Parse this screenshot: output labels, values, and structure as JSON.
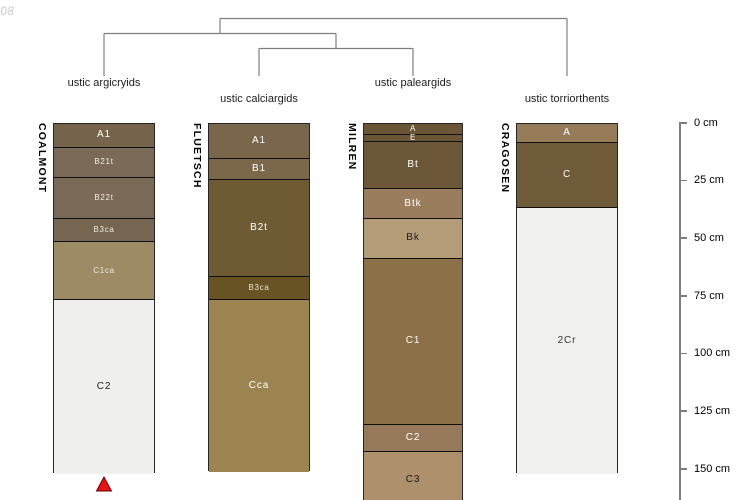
{
  "figure": {
    "corner_note": "-08",
    "depth_axis": {
      "unit": "cm",
      "tick_labels": [
        "0 cm",
        "25 cm",
        "50 cm",
        "75 cm",
        "100 cm",
        "125 cm",
        "150 cm"
      ],
      "ticks_cm": [
        0,
        25,
        50,
        75,
        100,
        125,
        150
      ]
    }
  },
  "chart_data": {
    "type": "soil-profile-columns-with-dendrogram",
    "depth_unit": "cm",
    "depth_axis_ticks_cm": [
      0,
      25,
      50,
      75,
      100,
      125,
      150
    ],
    "profiles": [
      {
        "name": "COALMONT",
        "taxon": "ustic argicryids",
        "horizons": [
          {
            "label": "A1",
            "top_cm": 0,
            "bottom_cm": 10,
            "color": "#75634B",
            "label_color": "#ffffff",
            "label_size": "normal"
          },
          {
            "label": "B21t",
            "top_cm": 10,
            "bottom_cm": 23,
            "color": "#7B6A58",
            "label_color": "#f2ede1",
            "label_size": "small"
          },
          {
            "label": "B22t",
            "top_cm": 23,
            "bottom_cm": 41,
            "color": "#7B6A58",
            "label_color": "#f2ede1",
            "label_size": "small"
          },
          {
            "label": "B3ca",
            "top_cm": 41,
            "bottom_cm": 51,
            "color": "#766551",
            "label_color": "#f2ede1",
            "label_size": "small"
          },
          {
            "label": "C1ca",
            "top_cm": 51,
            "bottom_cm": 76,
            "color": "#9D8B66",
            "label_color": "#efe9db",
            "label_size": "small"
          },
          {
            "label": "C2",
            "top_cm": 76,
            "bottom_cm": 152,
            "color": "#F0F0EE",
            "label_color": "#1a1a1a",
            "label_size": "normal"
          }
        ]
      },
      {
        "name": "FLUETSCH",
        "taxon": "ustic calciargids",
        "horizons": [
          {
            "label": "A1",
            "top_cm": 0,
            "bottom_cm": 15,
            "color": "#7A664A",
            "label_color": "#ffffff",
            "label_size": "normal"
          },
          {
            "label": "B1",
            "top_cm": 15,
            "bottom_cm": 24,
            "color": "#7B6749",
            "label_color": "#ffffff",
            "label_size": "normal"
          },
          {
            "label": "B2t",
            "top_cm": 24,
            "bottom_cm": 66,
            "color": "#6E5B33",
            "label_color": "#ffffff",
            "label_size": "normal"
          },
          {
            "label": "B3ca",
            "top_cm": 66,
            "bottom_cm": 76,
            "color": "#675323",
            "label_color": "#ece5d2",
            "label_size": "small"
          },
          {
            "label": "Cca",
            "top_cm": 76,
            "bottom_cm": 151,
            "color": "#9C8450",
            "label_color": "#ffffff",
            "label_size": "normal"
          }
        ]
      },
      {
        "name": "MILREN",
        "taxon": "ustic paleargids",
        "horizons": [
          {
            "label": "A",
            "top_cm": 0,
            "bottom_cm": 4.5,
            "color": "#6A5537",
            "label_color": "#ffffff",
            "label_size": "small"
          },
          {
            "label": "E",
            "top_cm": 4.5,
            "bottom_cm": 7.5,
            "color": "#6A5537",
            "label_color": "#ffffff",
            "label_size": "small"
          },
          {
            "label": "Bt",
            "top_cm": 7.5,
            "bottom_cm": 28,
            "color": "#6C5838",
            "label_color": "#ffffff",
            "label_size": "normal"
          },
          {
            "label": "Btk",
            "top_cm": 28,
            "bottom_cm": 41,
            "color": "#9A7D5D",
            "label_color": "#ffffff",
            "label_size": "normal"
          },
          {
            "label": "Bk",
            "top_cm": 41,
            "bottom_cm": 58,
            "color": "#B59C79",
            "label_color": "#1a1a1a",
            "label_size": "normal"
          },
          {
            "label": "C1",
            "top_cm": 58,
            "bottom_cm": 130,
            "color": "#8C7048",
            "label_color": "#ffffff",
            "label_size": "normal"
          },
          {
            "label": "C2",
            "top_cm": 130,
            "bottom_cm": 142,
            "color": "#96785A",
            "label_color": "#ffffff",
            "label_size": "normal"
          },
          {
            "label": "C3",
            "top_cm": 142,
            "bottom_cm": 166,
            "color": "#AF906C",
            "label_color": "#1a1a1a",
            "label_size": "normal"
          }
        ]
      },
      {
        "name": "CRAGOSEN",
        "taxon": "ustic torriorthents",
        "horizons": [
          {
            "label": "A",
            "top_cm": 0,
            "bottom_cm": 8,
            "color": "#967C59",
            "label_color": "#ffffff",
            "label_size": "normal"
          },
          {
            "label": "C",
            "top_cm": 8,
            "bottom_cm": 36,
            "color": "#6F5A3A",
            "label_color": "#ffffff",
            "label_size": "normal"
          },
          {
            "label": "2Cr",
            "top_cm": 36,
            "bottom_cm": 152,
            "color": "#F1F1EF",
            "label_color": "#333333",
            "label_size": "normal"
          }
        ]
      }
    ],
    "dendrogram": {
      "leaves": [
        "ustic argicryids",
        "ustic calciargids",
        "ustic paleargids",
        "ustic torriorthents"
      ],
      "merges": [
        {
          "members": [
            "ustic calciargids",
            "ustic paleargids"
          ],
          "order": 3
        },
        {
          "members": [
            "ustic argicryids",
            "cluster(calciargids,paleargids)"
          ],
          "order": 2
        },
        {
          "members": [
            "cluster(argicryids,calciargids,paleargids)",
            "ustic torriorthents"
          ],
          "order": 1
        }
      ],
      "line_color": "#7f7f7f"
    },
    "marker": {
      "shape": "triangle-up",
      "color": "#E51414",
      "below_profile": "COALMONT"
    }
  }
}
